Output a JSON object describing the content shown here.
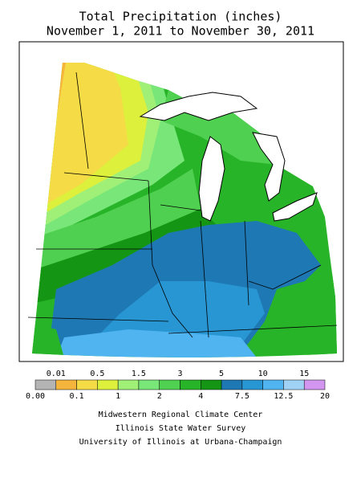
{
  "title": [
    "Total Precipitation (inches)",
    "November 1, 2011 to November 30, 2011"
  ],
  "legend": {
    "colors": [
      "#b4b4b4",
      "#f5b43c",
      "#f5dc46",
      "#dcf03c",
      "#a0f078",
      "#78e678",
      "#50d050",
      "#28b428",
      "#149614",
      "#1e78b4",
      "#2896d2",
      "#50b4f0",
      "#a0d2f5",
      "#d296f0"
    ],
    "labels_top": [
      "0.01",
      "0.5",
      "1.5",
      "3",
      "5",
      "10",
      "15"
    ],
    "labels_bottom": [
      "0.00",
      "0.1",
      "1",
      "2",
      "4",
      "7.5",
      "12.5",
      "20"
    ]
  },
  "credits": [
    "Midwestern Regional Climate Center",
    "Illinois State Water Survey",
    "University of Illinois at Urbana-Champaign"
  ]
}
